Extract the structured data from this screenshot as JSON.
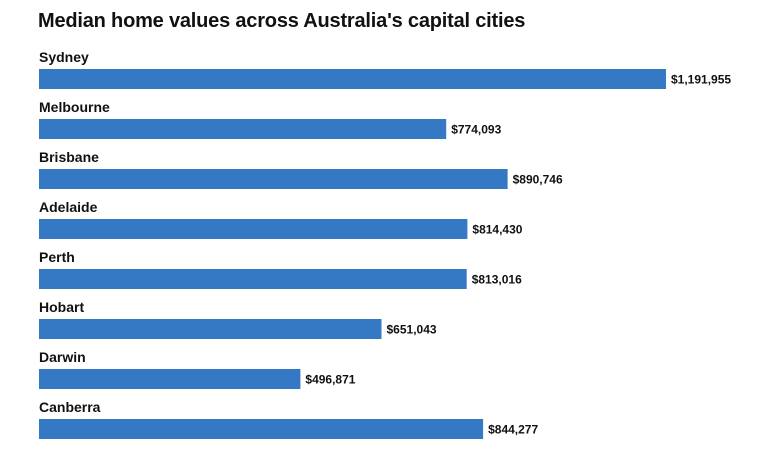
{
  "chart_data": {
    "type": "bar",
    "orientation": "horizontal",
    "title": "Median home values across Australia's capital cities",
    "categories": [
      "Sydney",
      "Melbourne",
      "Brisbane",
      "Adelaide",
      "Perth",
      "Hobart",
      "Darwin",
      "Canberra"
    ],
    "values": [
      1191955,
      774093,
      890746,
      814430,
      813016,
      651043,
      496871,
      844277
    ],
    "value_labels": [
      "$1,191,955",
      "$774,093",
      "$890,746",
      "$814,430",
      "$813,016",
      "$651,043",
      "$496,871",
      "$844,277"
    ],
    "xlim": [
      0,
      1191955
    ],
    "grid": false,
    "legend": "none",
    "bar_color": "#3579c4"
  }
}
